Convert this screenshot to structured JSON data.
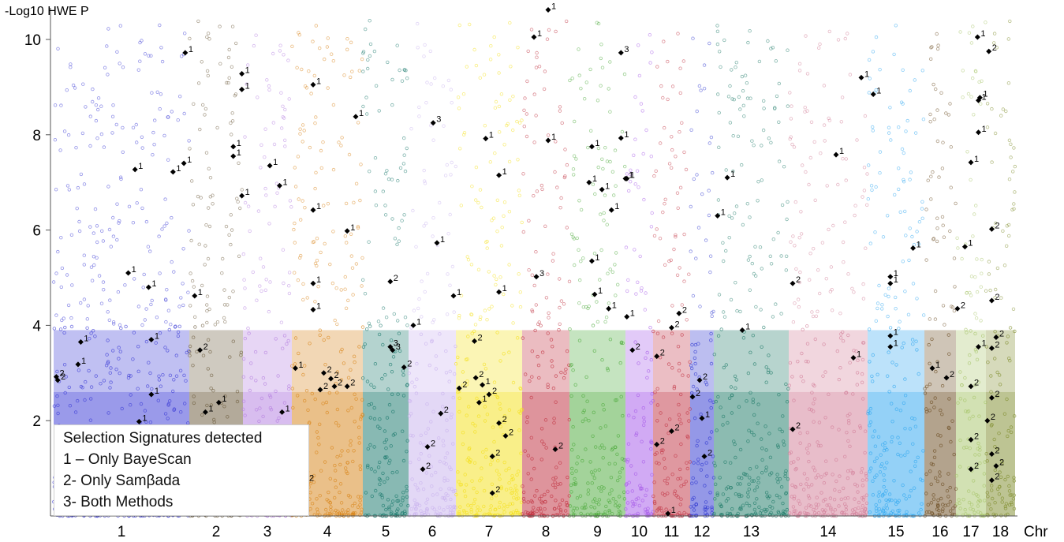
{
  "chart_data": {
    "type": "scatter",
    "title": "",
    "ylabel": "-Log10 HWE P",
    "xlabel": "Chr",
    "ylim": [
      0,
      10.6
    ],
    "yticks": [
      2,
      4,
      6,
      8,
      10
    ],
    "chromosomes": [
      {
        "label": "1",
        "color": "#3b3bd6"
      },
      {
        "label": "2",
        "color": "#6b5a3a"
      },
      {
        "label": "3",
        "color": "#b57fe0"
      },
      {
        "label": "4",
        "color": "#d88418"
      },
      {
        "label": "5",
        "color": "#16766a"
      },
      {
        "label": "6",
        "color": "#c9b2ee"
      },
      {
        "label": "7",
        "color": "#f4e01a"
      },
      {
        "label": "8",
        "color": "#c0303e"
      },
      {
        "label": "9",
        "color": "#4caa3a"
      },
      {
        "label": "10",
        "color": "#a65ae8"
      },
      {
        "label": "11",
        "color": "#c23646"
      },
      {
        "label": "12",
        "color": "#2e36d0"
      },
      {
        "label": "13",
        "color": "#1e7a68"
      },
      {
        "label": "14",
        "color": "#d27e98"
      },
      {
        "label": "15",
        "color": "#2ea6f0"
      },
      {
        "label": "16",
        "color": "#6a4a20"
      },
      {
        "label": "17",
        "color": "#a7c46a"
      },
      {
        "label": "18",
        "color": "#7e8c2a"
      }
    ],
    "signatures": [
      {
        "chr": "1",
        "pos": 0.02,
        "y": 2.92,
        "method": "2"
      },
      {
        "chr": "1",
        "pos": 0.03,
        "y": 2.85,
        "method": "2"
      },
      {
        "chr": "1",
        "pos": 0.2,
        "y": 3.65,
        "method": "1"
      },
      {
        "chr": "1",
        "pos": 0.18,
        "y": 3.18,
        "method": "1"
      },
      {
        "chr": "1",
        "pos": 0.6,
        "y": 7.27,
        "method": "1"
      },
      {
        "chr": "1",
        "pos": 0.55,
        "y": 5.1,
        "method": "1"
      },
      {
        "chr": "1",
        "pos": 0.7,
        "y": 4.8,
        "method": "1"
      },
      {
        "chr": "1",
        "pos": 0.72,
        "y": 3.7,
        "method": "1"
      },
      {
        "chr": "1",
        "pos": 0.72,
        "y": 2.55,
        "method": "1"
      },
      {
        "chr": "1",
        "pos": 0.63,
        "y": 1.98,
        "method": "1"
      },
      {
        "chr": "1",
        "pos": 0.88,
        "y": 7.22,
        "method": "1"
      },
      {
        "chr": "1",
        "pos": 0.96,
        "y": 7.4,
        "method": "1"
      },
      {
        "chr": "1",
        "pos": 0.97,
        "y": 9.72,
        "method": "1"
      },
      {
        "chr": "2",
        "pos": 0.1,
        "y": 4.62,
        "method": "1"
      },
      {
        "chr": "2",
        "pos": 0.2,
        "y": 3.48,
        "method": "2"
      },
      {
        "chr": "2",
        "pos": 0.3,
        "y": 2.18,
        "method": "1"
      },
      {
        "chr": "2",
        "pos": 0.55,
        "y": 2.38,
        "method": "1"
      },
      {
        "chr": "2",
        "pos": 0.82,
        "y": 7.75,
        "method": "1"
      },
      {
        "chr": "2",
        "pos": 0.82,
        "y": 7.55,
        "method": "1"
      },
      {
        "chr": "2",
        "pos": 0.98,
        "y": 9.28,
        "method": "1"
      },
      {
        "chr": "2",
        "pos": 0.98,
        "y": 8.95,
        "method": "1"
      },
      {
        "chr": "2",
        "pos": 0.98,
        "y": 6.72,
        "method": "1"
      },
      {
        "chr": "3",
        "pos": 0.55,
        "y": 7.35,
        "method": "1"
      },
      {
        "chr": "3",
        "pos": 0.75,
        "y": 6.93,
        "method": "1"
      },
      {
        "chr": "3",
        "pos": 0.8,
        "y": 2.18,
        "method": "1"
      },
      {
        "chr": "4",
        "pos": 0.05,
        "y": 3.1,
        "method": "1"
      },
      {
        "chr": "4",
        "pos": 0.3,
        "y": 4.88,
        "method": "1"
      },
      {
        "chr": "4",
        "pos": 0.3,
        "y": 4.33,
        "method": "1"
      },
      {
        "chr": "4",
        "pos": 0.3,
        "y": 9.05,
        "method": "1"
      },
      {
        "chr": "4",
        "pos": 0.3,
        "y": 6.42,
        "method": "1"
      },
      {
        "chr": "4",
        "pos": 0.45,
        "y": 3.0,
        "method": "2"
      },
      {
        "chr": "4",
        "pos": 0.55,
        "y": 2.88,
        "method": "2"
      },
      {
        "chr": "4",
        "pos": 0.6,
        "y": 2.72,
        "method": "2"
      },
      {
        "chr": "4",
        "pos": 0.4,
        "y": 2.65,
        "method": "2"
      },
      {
        "chr": "4",
        "pos": 0.78,
        "y": 2.72,
        "method": "2"
      },
      {
        "chr": "4",
        "pos": 0.78,
        "y": 5.98,
        "method": "1"
      },
      {
        "chr": "4",
        "pos": 0.9,
        "y": 8.38,
        "method": "1"
      },
      {
        "chr": "4",
        "pos": 0.2,
        "y": 0.72,
        "method": "2"
      },
      {
        "chr": "5",
        "pos": 0.6,
        "y": 4.92,
        "method": "2"
      },
      {
        "chr": "5",
        "pos": 0.6,
        "y": 3.55,
        "method": "3"
      },
      {
        "chr": "5",
        "pos": 0.65,
        "y": 3.48,
        "method": "3"
      },
      {
        "chr": "5",
        "pos": 0.9,
        "y": 3.12,
        "method": "2"
      },
      {
        "chr": "6",
        "pos": 0.1,
        "y": 4.0,
        "method": "1"
      },
      {
        "chr": "6",
        "pos": 0.6,
        "y": 5.73,
        "method": "1"
      },
      {
        "chr": "6",
        "pos": 0.68,
        "y": 2.15,
        "method": "2"
      },
      {
        "chr": "6",
        "pos": 0.4,
        "y": 1.45,
        "method": "2"
      },
      {
        "chr": "6",
        "pos": 0.3,
        "y": 0.98,
        "method": "2"
      },
      {
        "chr": "6",
        "pos": 0.52,
        "y": 8.25,
        "method": "3"
      },
      {
        "chr": "6",
        "pos": 0.95,
        "y": 4.62,
        "method": "1"
      },
      {
        "chr": "7",
        "pos": 0.05,
        "y": 2.68,
        "method": "2"
      },
      {
        "chr": "7",
        "pos": 0.28,
        "y": 3.67,
        "method": "2"
      },
      {
        "chr": "7",
        "pos": 0.3,
        "y": 2.9,
        "method": "2"
      },
      {
        "chr": "7",
        "pos": 0.4,
        "y": 2.75,
        "method": "1"
      },
      {
        "chr": "7",
        "pos": 0.5,
        "y": 2.55,
        "method": "2"
      },
      {
        "chr": "7",
        "pos": 0.35,
        "y": 2.38,
        "method": "1"
      },
      {
        "chr": "7",
        "pos": 0.65,
        "y": 1.95,
        "method": "2"
      },
      {
        "chr": "7",
        "pos": 0.75,
        "y": 1.68,
        "method": "2"
      },
      {
        "chr": "7",
        "pos": 0.55,
        "y": 1.25,
        "method": "2"
      },
      {
        "chr": "7",
        "pos": 0.55,
        "y": 0.48,
        "method": "2"
      },
      {
        "chr": "7",
        "pos": 0.45,
        "y": 7.92,
        "method": "1"
      },
      {
        "chr": "7",
        "pos": 0.65,
        "y": 7.15,
        "method": "1"
      },
      {
        "chr": "7",
        "pos": 0.65,
        "y": 4.7,
        "method": "1"
      },
      {
        "chr": "8",
        "pos": 0.25,
        "y": 10.05,
        "method": "1"
      },
      {
        "chr": "8",
        "pos": 0.55,
        "y": 10.62,
        "method": "1"
      },
      {
        "chr": "8",
        "pos": 0.55,
        "y": 7.88,
        "method": "1"
      },
      {
        "chr": "8",
        "pos": 0.3,
        "y": 5.02,
        "method": "3"
      },
      {
        "chr": "8",
        "pos": 0.7,
        "y": 1.4,
        "method": "2"
      },
      {
        "chr": "9",
        "pos": 0.4,
        "y": 7.75,
        "method": "1"
      },
      {
        "chr": "9",
        "pos": 0.4,
        "y": 5.35,
        "method": "1"
      },
      {
        "chr": "9",
        "pos": 0.45,
        "y": 4.65,
        "method": "1"
      },
      {
        "chr": "9",
        "pos": 0.35,
        "y": 7.0,
        "method": "1"
      },
      {
        "chr": "9",
        "pos": 0.58,
        "y": 6.85,
        "method": "1"
      },
      {
        "chr": "9",
        "pos": 0.75,
        "y": 6.42,
        "method": "1"
      },
      {
        "chr": "9",
        "pos": 0.7,
        "y": 4.35,
        "method": "1"
      },
      {
        "chr": "9",
        "pos": 0.92,
        "y": 9.72,
        "method": "3"
      },
      {
        "chr": "9",
        "pos": 0.92,
        "y": 7.93,
        "method": "1"
      },
      {
        "chr": "9",
        "pos": 1.0,
        "y": 7.08,
        "method": "1"
      },
      {
        "chr": "10",
        "pos": 0.05,
        "y": 7.08,
        "method": "1"
      },
      {
        "chr": "10",
        "pos": 0.05,
        "y": 4.18,
        "method": "1"
      },
      {
        "chr": "10",
        "pos": 0.25,
        "y": 3.48,
        "method": "2"
      },
      {
        "chr": "11",
        "pos": 0.1,
        "y": 3.35,
        "method": "2"
      },
      {
        "chr": "11",
        "pos": 0.5,
        "y": 3.95,
        "method": "2"
      },
      {
        "chr": "11",
        "pos": 0.7,
        "y": 4.25,
        "method": "2"
      },
      {
        "chr": "11",
        "pos": 0.1,
        "y": 1.5,
        "method": "2"
      },
      {
        "chr": "11",
        "pos": 0.5,
        "y": 1.78,
        "method": "2"
      },
      {
        "chr": "11",
        "pos": 0.4,
        "y": 0.05,
        "method": "1"
      },
      {
        "chr": "12",
        "pos": 0.1,
        "y": 2.5,
        "method": "2"
      },
      {
        "chr": "12",
        "pos": 0.4,
        "y": 2.85,
        "method": "2"
      },
      {
        "chr": "12",
        "pos": 0.5,
        "y": 2.05,
        "method": "1"
      },
      {
        "chr": "12",
        "pos": 0.6,
        "y": 1.25,
        "method": "2"
      },
      {
        "chr": "13",
        "pos": 0.05,
        "y": 6.3,
        "method": "1"
      },
      {
        "chr": "13",
        "pos": 0.18,
        "y": 7.1,
        "method": "1"
      },
      {
        "chr": "13",
        "pos": 0.38,
        "y": 3.9,
        "method": "1"
      },
      {
        "chr": "14",
        "pos": 0.05,
        "y": 4.88,
        "method": "2"
      },
      {
        "chr": "14",
        "pos": 0.05,
        "y": 1.82,
        "method": "2"
      },
      {
        "chr": "14",
        "pos": 0.6,
        "y": 7.58,
        "method": "1"
      },
      {
        "chr": "14",
        "pos": 0.82,
        "y": 3.32,
        "method": "1"
      },
      {
        "chr": "14",
        "pos": 0.92,
        "y": 9.2,
        "method": "1"
      },
      {
        "chr": "15",
        "pos": 0.1,
        "y": 8.85,
        "method": "1"
      },
      {
        "chr": "15",
        "pos": 0.4,
        "y": 5.02,
        "method": "1"
      },
      {
        "chr": "15",
        "pos": 0.4,
        "y": 4.88,
        "method": "1"
      },
      {
        "chr": "15",
        "pos": 0.4,
        "y": 3.78,
        "method": "1"
      },
      {
        "chr": "15",
        "pos": 0.4,
        "y": 3.55,
        "method": "1"
      },
      {
        "chr": "15",
        "pos": 0.8,
        "y": 5.62,
        "method": "1"
      },
      {
        "chr": "16",
        "pos": 0.25,
        "y": 3.1,
        "method": "1"
      },
      {
        "chr": "16",
        "pos": 0.7,
        "y": 2.9,
        "method": "2"
      },
      {
        "chr": "17",
        "pos": 0.05,
        "y": 4.35,
        "method": "2"
      },
      {
        "chr": "17",
        "pos": 0.3,
        "y": 5.65,
        "method": "1"
      },
      {
        "chr": "17",
        "pos": 0.5,
        "y": 7.42,
        "method": "1"
      },
      {
        "chr": "17",
        "pos": 0.5,
        "y": 2.72,
        "method": "2"
      },
      {
        "chr": "17",
        "pos": 0.5,
        "y": 1.6,
        "method": "2"
      },
      {
        "chr": "17",
        "pos": 0.5,
        "y": 0.98,
        "method": "2"
      },
      {
        "chr": "17",
        "pos": 0.72,
        "y": 10.05,
        "method": "1"
      },
      {
        "chr": "17",
        "pos": 0.75,
        "y": 8.72,
        "method": "1"
      },
      {
        "chr": "17",
        "pos": 0.8,
        "y": 8.78,
        "method": "1"
      },
      {
        "chr": "17",
        "pos": 0.75,
        "y": 8.05,
        "method": "1"
      },
      {
        "chr": "17",
        "pos": 0.75,
        "y": 3.55,
        "method": "1"
      },
      {
        "chr": "18",
        "pos": 0.1,
        "y": 9.75,
        "method": "2"
      },
      {
        "chr": "18",
        "pos": 0.2,
        "y": 6.02,
        "method": "2"
      },
      {
        "chr": "18",
        "pos": 0.2,
        "y": 4.52,
        "method": "2"
      },
      {
        "chr": "18",
        "pos": 0.2,
        "y": 3.52,
        "method": "2"
      },
      {
        "chr": "18",
        "pos": 0.35,
        "y": 3.75,
        "method": "2"
      },
      {
        "chr": "18",
        "pos": 0.2,
        "y": 2.48,
        "method": "2"
      },
      {
        "chr": "18",
        "pos": 0.05,
        "y": 2.0,
        "method": "2"
      },
      {
        "chr": "18",
        "pos": 0.2,
        "y": 1.3,
        "method": "2"
      },
      {
        "chr": "18",
        "pos": 0.35,
        "y": 1.05,
        "method": "2"
      },
      {
        "chr": "18",
        "pos": 0.2,
        "y": 0.75,
        "method": "2"
      }
    ],
    "legend": {
      "title": "Selection Signatures detected",
      "entries": [
        "1 – Only  BayeScan",
        "2- Only Samβada",
        "3- Both Methods"
      ],
      "placement": "bottom-left"
    },
    "grid": false
  }
}
